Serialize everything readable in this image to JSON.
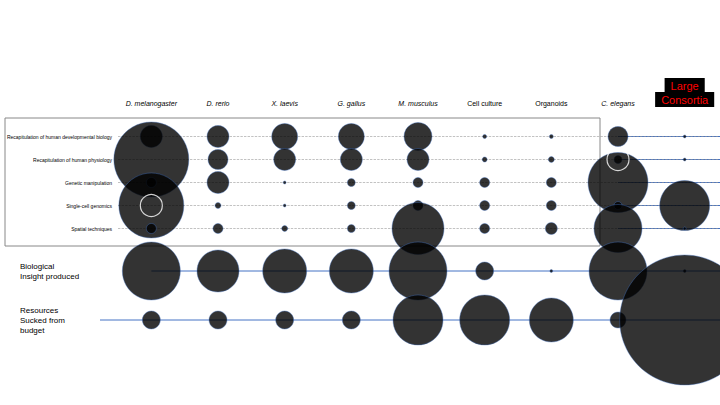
{
  "chart_data": {
    "type": "scatter",
    "columns": [
      "D. melanogaster",
      "D. rerio",
      "X. laevis",
      "G. gallus",
      "M. musculus",
      "Cell culture",
      "Organoids",
      "C. elegans",
      "Large\nConsortia"
    ],
    "rows": [
      "Recapitulation of human developmental biology",
      "Recapitulation of human physiology",
      "Genetic manipulation",
      "Single-cell genomics",
      "Spatial techniques"
    ],
    "sizes": [
      [
        22,
        22,
        26,
        26,
        28,
        4,
        4,
        20,
        3
      ],
      [
        75,
        20,
        22,
        22,
        22,
        5,
        6,
        8,
        3
      ],
      [
        10,
        22,
        3,
        8,
        10,
        10,
        10,
        60,
        0
      ],
      [
        65,
        6,
        3,
        8,
        10,
        10,
        10,
        8,
        50
      ],
      [
        10,
        10,
        6,
        8,
        52,
        10,
        12,
        48,
        3
      ]
    ],
    "extra_rows": [
      {
        "label": "Biological\nInsight produced",
        "sizes": [
          58,
          42,
          44,
          44,
          58,
          18,
          3,
          58,
          3
        ]
      },
      {
        "label": "Resources\nSucked from\nbudget",
        "sizes": [
          18,
          18,
          18,
          18,
          50,
          50,
          44,
          16,
          130
        ]
      }
    ],
    "highlights": [
      {
        "column": "D. melanogaster",
        "row": "Single-cell genomics",
        "size": 22
      },
      {
        "column": "C. elegans",
        "row": "Recapitulation of human physiology",
        "size": 22
      }
    ],
    "color": "#000000"
  }
}
